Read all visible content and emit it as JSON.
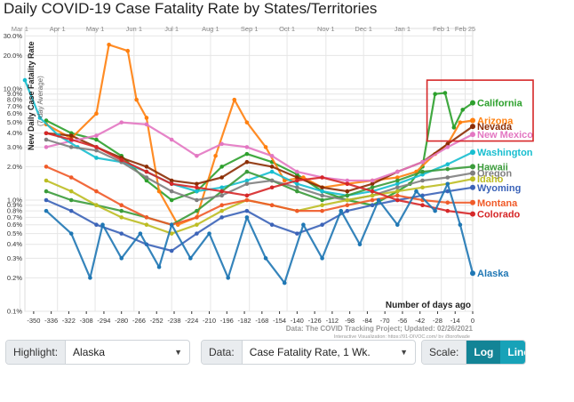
{
  "title": "Daily COVID-19 Case Fatality Rate by States/Territories",
  "chart_data": {
    "type": "line",
    "title": "Daily COVID-19 Case Fatality Rate by States/Territories",
    "ylabel": "New Daily Case Fatality Rate",
    "ylabel_sub": "(7-day Average)",
    "xlabel": "Number of days ago",
    "yscale": "log",
    "ylim": [
      0.1,
      35
    ],
    "xlim": [
      -357,
      0
    ],
    "y_ticks": [
      "0.1%",
      "0.2%",
      "0.3%",
      "0.4%",
      "0.5%",
      "0.6%",
      "0.7%",
      "0.8%",
      "0.9%",
      "1.0%",
      "2.0%",
      "3.0%",
      "4.0%",
      "5.0%",
      "6.0%",
      "7.0%",
      "8.0%",
      "9.0%",
      "10.0%",
      "20.0%",
      "30.0%"
    ],
    "y_tick_values": [
      0.1,
      0.2,
      0.3,
      0.4,
      0.5,
      0.6,
      0.7,
      0.8,
      0.9,
      1,
      2,
      3,
      4,
      5,
      6,
      7,
      8,
      9,
      10,
      20,
      30
    ],
    "x_ticks": [
      -350,
      -336,
      -322,
      -308,
      -294,
      -280,
      -266,
      -252,
      -238,
      -224,
      -210,
      -196,
      -182,
      -168,
      -154,
      -140,
      -126,
      -112,
      -98,
      -84,
      -70,
      -56,
      -42,
      -28,
      -14,
      0
    ],
    "month_labels": [
      {
        "label": "Mar 1",
        "x": -361
      },
      {
        "label": "Apr 1",
        "x": -331
      },
      {
        "label": "May 1",
        "x": -301
      },
      {
        "label": "Jun 1",
        "x": -270
      },
      {
        "label": "Jul 1",
        "x": -240
      },
      {
        "label": "Aug 1",
        "x": -209
      },
      {
        "label": "Sep 1",
        "x": -178
      },
      {
        "label": "Oct 1",
        "x": -148
      },
      {
        "label": "Nov 1",
        "x": -117
      },
      {
        "label": "Dec 1",
        "x": -87
      },
      {
        "label": "Jan 1",
        "x": -56
      },
      {
        "label": "Feb 1",
        "x": -25
      },
      {
        "label": "Feb 25",
        "x": -6
      }
    ],
    "source": "Data: The COVID Tracking Project; Updated: 02/26/2021",
    "credit": "Interactive Visualization: https://91-DIVOC.com/ by @profwade_",
    "grid": true,
    "highlight_box": {
      "x": [
        -35,
        0
      ],
      "y": [
        3.4,
        12
      ]
    },
    "series": [
      {
        "name": "California",
        "color": "#2ca02c",
        "end": 7.5,
        "points": [
          [
            -340,
            5.2
          ],
          [
            -320,
            4.0
          ],
          [
            -300,
            3.5
          ],
          [
            -280,
            2.5
          ],
          [
            -260,
            1.5
          ],
          [
            -240,
            1.0
          ],
          [
            -220,
            1.2
          ],
          [
            -200,
            2.0
          ],
          [
            -180,
            2.6
          ],
          [
            -160,
            2.2
          ],
          [
            -140,
            1.7
          ],
          [
            -120,
            1.2
          ],
          [
            -100,
            1.0
          ],
          [
            -80,
            0.9
          ],
          [
            -60,
            1.2
          ],
          [
            -50,
            1.4
          ],
          [
            -40,
            2.0
          ],
          [
            -30,
            9.0
          ],
          [
            -22,
            9.2
          ],
          [
            -15,
            4.5
          ],
          [
            -8,
            6.5
          ],
          [
            0,
            7.5
          ]
        ]
      },
      {
        "name": "Arizona",
        "color": "#ff7f0e",
        "end": 5.2,
        "points": [
          [
            -340,
            4.8
          ],
          [
            -320,
            3.6
          ],
          [
            -300,
            6.0
          ],
          [
            -290,
            25.0
          ],
          [
            -275,
            22.0
          ],
          [
            -268,
            8.0
          ],
          [
            -260,
            5.5
          ],
          [
            -250,
            1.2
          ],
          [
            -235,
            0.6
          ],
          [
            -220,
            0.7
          ],
          [
            -205,
            2.5
          ],
          [
            -190,
            8.0
          ],
          [
            -180,
            5.0
          ],
          [
            -165,
            3.0
          ],
          [
            -150,
            1.5
          ],
          [
            -135,
            1.6
          ],
          [
            -120,
            1.3
          ],
          [
            -100,
            1.4
          ],
          [
            -80,
            1.5
          ],
          [
            -60,
            1.6
          ],
          [
            -45,
            1.8
          ],
          [
            -30,
            2.6
          ],
          [
            -20,
            3.2
          ],
          [
            -10,
            5.0
          ],
          [
            0,
            5.2
          ]
        ]
      },
      {
        "name": "Nevada",
        "color": "#8c2d04",
        "end": 4.6,
        "points": [
          [
            -340,
            4.0
          ],
          [
            -320,
            3.8
          ],
          [
            -300,
            3.0
          ],
          [
            -280,
            2.4
          ],
          [
            -260,
            2.0
          ],
          [
            -240,
            1.5
          ],
          [
            -220,
            1.4
          ],
          [
            -200,
            1.6
          ],
          [
            -180,
            2.2
          ],
          [
            -160,
            2.0
          ],
          [
            -140,
            1.6
          ],
          [
            -120,
            1.3
          ],
          [
            -100,
            1.2
          ],
          [
            -80,
            1.4
          ],
          [
            -60,
            1.8
          ],
          [
            -40,
            2.2
          ],
          [
            -20,
            3.2
          ],
          [
            0,
            4.6
          ]
        ]
      },
      {
        "name": "New Mexico",
        "color": "#e377c2",
        "end": 3.9,
        "points": [
          [
            -340,
            3.0
          ],
          [
            -320,
            3.4
          ],
          [
            -300,
            3.8
          ],
          [
            -280,
            5.0
          ],
          [
            -260,
            4.8
          ],
          [
            -240,
            3.5
          ],
          [
            -220,
            2.5
          ],
          [
            -200,
            3.2
          ],
          [
            -180,
            3.0
          ],
          [
            -160,
            2.5
          ],
          [
            -140,
            1.8
          ],
          [
            -120,
            1.6
          ],
          [
            -100,
            1.5
          ],
          [
            -80,
            1.5
          ],
          [
            -60,
            1.8
          ],
          [
            -40,
            2.2
          ],
          [
            -20,
            3.0
          ],
          [
            0,
            3.9
          ]
        ]
      },
      {
        "name": "Washington",
        "color": "#17becf",
        "end": 2.7,
        "points": [
          [
            -357,
            12.0
          ],
          [
            -345,
            5.5
          ],
          [
            -330,
            3.8
          ],
          [
            -315,
            3.0
          ],
          [
            -300,
            2.4
          ],
          [
            -280,
            2.2
          ],
          [
            -260,
            1.8
          ],
          [
            -240,
            1.4
          ],
          [
            -220,
            1.2
          ],
          [
            -200,
            1.3
          ],
          [
            -180,
            1.5
          ],
          [
            -160,
            1.8
          ],
          [
            -140,
            1.4
          ],
          [
            -120,
            1.2
          ],
          [
            -100,
            1.1
          ],
          [
            -80,
            1.2
          ],
          [
            -60,
            1.4
          ],
          [
            -40,
            1.7
          ],
          [
            -20,
            2.1
          ],
          [
            0,
            2.7
          ]
        ]
      },
      {
        "name": "Hawaii",
        "color": "#3a9b3a",
        "end": 2.0,
        "points": [
          [
            -340,
            1.2
          ],
          [
            -320,
            1.0
          ],
          [
            -300,
            0.9
          ],
          [
            -280,
            0.8
          ],
          [
            -260,
            0.7
          ],
          [
            -240,
            0.6
          ],
          [
            -220,
            0.8
          ],
          [
            -200,
            1.2
          ],
          [
            -180,
            1.8
          ],
          [
            -160,
            1.5
          ],
          [
            -140,
            1.2
          ],
          [
            -120,
            1.0
          ],
          [
            -100,
            1.1
          ],
          [
            -80,
            1.3
          ],
          [
            -60,
            1.5
          ],
          [
            -40,
            1.8
          ],
          [
            -20,
            1.9
          ],
          [
            0,
            2.0
          ]
        ]
      },
      {
        "name": "Oregon",
        "color": "#7f7f7f",
        "end": 1.75,
        "points": [
          [
            -340,
            3.5
          ],
          [
            -320,
            3.0
          ],
          [
            -300,
            2.8
          ],
          [
            -280,
            2.2
          ],
          [
            -260,
            1.6
          ],
          [
            -240,
            1.2
          ],
          [
            -220,
            1.0
          ],
          [
            -200,
            1.1
          ],
          [
            -180,
            1.4
          ],
          [
            -160,
            1.5
          ],
          [
            -140,
            1.3
          ],
          [
            -120,
            1.1
          ],
          [
            -100,
            1.0
          ],
          [
            -80,
            1.1
          ],
          [
            -60,
            1.3
          ],
          [
            -40,
            1.5
          ],
          [
            -20,
            1.6
          ],
          [
            0,
            1.75
          ]
        ]
      },
      {
        "name": "Idaho",
        "color": "#bcbd22",
        "end": 1.55,
        "points": [
          [
            -340,
            1.5
          ],
          [
            -320,
            1.2
          ],
          [
            -300,
            0.9
          ],
          [
            -280,
            0.7
          ],
          [
            -260,
            0.6
          ],
          [
            -240,
            0.5
          ],
          [
            -220,
            0.6
          ],
          [
            -200,
            0.8
          ],
          [
            -180,
            1.0
          ],
          [
            -160,
            0.9
          ],
          [
            -140,
            0.8
          ],
          [
            -120,
            0.9
          ],
          [
            -100,
            1.0
          ],
          [
            -80,
            1.1
          ],
          [
            -60,
            1.2
          ],
          [
            -40,
            1.3
          ],
          [
            -20,
            1.4
          ],
          [
            0,
            1.55
          ]
        ]
      },
      {
        "name": "Wyoming",
        "color": "#3b63b8",
        "end": 1.3,
        "points": [
          [
            -340,
            1.0
          ],
          [
            -320,
            0.8
          ],
          [
            -300,
            0.6
          ],
          [
            -280,
            0.5
          ],
          [
            -260,
            0.4
          ],
          [
            -240,
            0.35
          ],
          [
            -220,
            0.5
          ],
          [
            -200,
            0.7
          ],
          [
            -180,
            0.8
          ],
          [
            -160,
            0.6
          ],
          [
            -140,
            0.5
          ],
          [
            -120,
            0.6
          ],
          [
            -100,
            0.8
          ],
          [
            -80,
            0.9
          ],
          [
            -60,
            1.0
          ],
          [
            -40,
            1.1
          ],
          [
            -20,
            1.2
          ],
          [
            0,
            1.3
          ]
        ]
      },
      {
        "name": "Montana",
        "color": "#f05a28",
        "end": 0.95,
        "points": [
          [
            -340,
            2.0
          ],
          [
            -320,
            1.6
          ],
          [
            -300,
            1.2
          ],
          [
            -280,
            0.9
          ],
          [
            -260,
            0.7
          ],
          [
            -240,
            0.6
          ],
          [
            -220,
            0.7
          ],
          [
            -200,
            0.9
          ],
          [
            -180,
            1.0
          ],
          [
            -160,
            0.9
          ],
          [
            -140,
            0.8
          ],
          [
            -120,
            0.8
          ],
          [
            -100,
            0.9
          ],
          [
            -80,
            1.0
          ],
          [
            -60,
            1.1
          ],
          [
            -40,
            1.0
          ],
          [
            -20,
            0.95
          ],
          [
            0,
            0.95
          ]
        ]
      },
      {
        "name": "Colorado",
        "color": "#d62728",
        "end": 0.75,
        "points": [
          [
            -340,
            4.0
          ],
          [
            -320,
            3.5
          ],
          [
            -300,
            3.0
          ],
          [
            -280,
            2.3
          ],
          [
            -260,
            1.8
          ],
          [
            -240,
            1.4
          ],
          [
            -220,
            1.3
          ],
          [
            -200,
            1.2
          ],
          [
            -180,
            1.1
          ],
          [
            -160,
            1.3
          ],
          [
            -140,
            1.5
          ],
          [
            -120,
            1.6
          ],
          [
            -100,
            1.4
          ],
          [
            -80,
            1.2
          ],
          [
            -60,
            1.0
          ],
          [
            -40,
            0.9
          ],
          [
            -20,
            0.8
          ],
          [
            0,
            0.75
          ]
        ]
      },
      {
        "name": "Alaska",
        "color": "#1f77b4",
        "end": 0.22,
        "points": [
          [
            -340,
            0.8
          ],
          [
            -320,
            0.5
          ],
          [
            -305,
            0.2
          ],
          [
            -295,
            0.6
          ],
          [
            -280,
            0.3
          ],
          [
            -265,
            0.5
          ],
          [
            -250,
            0.25
          ],
          [
            -240,
            0.6
          ],
          [
            -225,
            0.3
          ],
          [
            -210,
            0.5
          ],
          [
            -195,
            0.2
          ],
          [
            -180,
            0.7
          ],
          [
            -165,
            0.3
          ],
          [
            -150,
            0.18
          ],
          [
            -135,
            0.6
          ],
          [
            -120,
            0.3
          ],
          [
            -105,
            0.8
          ],
          [
            -90,
            0.4
          ],
          [
            -75,
            1.0
          ],
          [
            -60,
            0.6
          ],
          [
            -45,
            1.2
          ],
          [
            -30,
            0.8
          ],
          [
            -20,
            1.4
          ],
          [
            -10,
            0.6
          ],
          [
            0,
            0.22
          ]
        ]
      }
    ]
  },
  "controls": {
    "highlight_label": "Highlight:",
    "highlight_value": "Alaska",
    "data_label": "Data:",
    "data_value": "Case Fatality Rate, 1 Wk.",
    "scale_label": "Scale:",
    "scale_log": "Log",
    "scale_linear": "Linear",
    "colors": {
      "log": "#138496",
      "linear": "#17a2b8"
    }
  }
}
